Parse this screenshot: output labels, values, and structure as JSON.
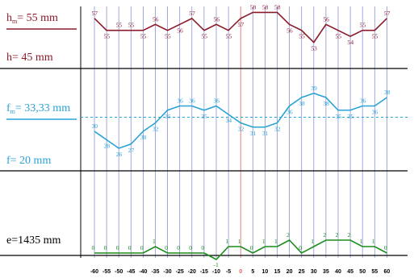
{
  "chart_data": {
    "type": "line",
    "x": [
      -60,
      -55,
      -50,
      -45,
      -40,
      -35,
      -30,
      -25,
      -20,
      -15,
      -10,
      -5,
      0,
      5,
      10,
      15,
      20,
      25,
      30,
      35,
      40,
      45,
      50,
      55,
      60
    ],
    "x_tick_labels": [
      "-60",
      "-55",
      "-50",
      "-45",
      "-40",
      "-35",
      "-30",
      "-25",
      "-20",
      "-15",
      "-10",
      "-5",
      "0",
      "5",
      "10",
      "15",
      "20",
      "25",
      "30",
      "35",
      "40",
      "45",
      "50",
      "55",
      "60"
    ],
    "highlight_x": 0,
    "colors": {
      "h": "#8b1a2b",
      "f": "#29a3d6",
      "e": "#1a8c1a",
      "vgrid": "#8a93d6",
      "vgrid_zero": "#e06060",
      "axis": "#000000"
    },
    "bands": [
      {
        "name": "h",
        "label_mean": "h",
        "label_mean_sub": "m",
        "label_mean_value": "= 55 mm",
        "label_ref": "h= 45 mm",
        "values": [
          57,
          55,
          55,
          55,
          55,
          56,
          55,
          56,
          57,
          55,
          56,
          55,
          57,
          58,
          58,
          58,
          56,
          55,
          53,
          56,
          55,
          54,
          55,
          55,
          57
        ],
        "labels": [
          "57",
          "55",
          "55",
          "55",
          "55",
          "56",
          "55",
          "56",
          "57",
          "55",
          "56",
          "55",
          "57",
          "58",
          "58",
          "58",
          "56",
          "55",
          "53",
          "56",
          "55",
          "54",
          "55",
          "55",
          "57"
        ],
        "mean": 55,
        "range": [
          52,
          59
        ]
      },
      {
        "name": "f",
        "label_mean": "f",
        "label_mean_sub": "m",
        "label_mean_value": "= 33,33 mm",
        "label_ref": "f= 20 mm",
        "values": [
          30,
          28,
          26,
          27,
          30,
          32,
          35,
          36,
          36,
          35,
          36,
          34,
          32,
          31,
          31,
          32,
          36,
          38,
          39,
          38,
          35,
          35,
          36,
          36,
          38
        ],
        "labels": [
          "30",
          "28",
          "26",
          "27",
          "30",
          "32",
          "35",
          "36",
          "36",
          "35",
          "36",
          "34",
          "32",
          "31",
          "31",
          "32",
          "36",
          "38",
          "39",
          "38",
          "35",
          "35",
          "36",
          "36",
          "38"
        ],
        "mean": 33.33,
        "range": [
          22,
          42
        ]
      },
      {
        "name": "e",
        "label_ref": "e=1435 mm",
        "values": [
          0,
          0,
          0,
          0,
          0,
          1,
          0,
          0,
          0,
          0,
          -1,
          1,
          1,
          0,
          1,
          1,
          2,
          0,
          1,
          2,
          2,
          2,
          1,
          1,
          0
        ],
        "labels": [
          "0",
          "0",
          "0",
          "0",
          "0",
          "1",
          "0",
          "0",
          "0",
          "0",
          "-1",
          "1",
          "1",
          "0",
          "1",
          "1",
          "2",
          "0",
          "1",
          "2",
          "2",
          "2",
          "1",
          "1",
          "0"
        ],
        "range": [
          -2,
          3
        ]
      }
    ]
  }
}
